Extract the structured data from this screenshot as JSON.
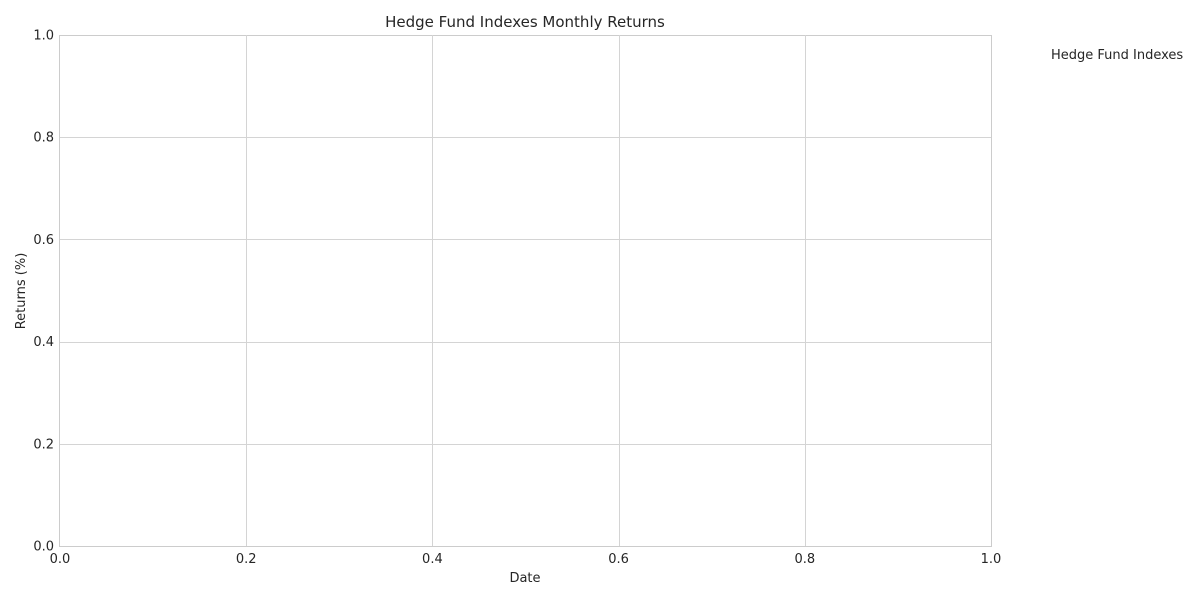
{
  "chart_data": {
    "type": "line",
    "title": "Hedge Fund Indexes Monthly Returns",
    "xlabel": "Date",
    "ylabel": "Returns (%)",
    "xlim": [
      0.0,
      1.0
    ],
    "ylim": [
      0.0,
      1.0
    ],
    "x_ticks": [
      "0.0",
      "0.2",
      "0.4",
      "0.6",
      "0.8",
      "1.0"
    ],
    "y_ticks": [
      "0.0",
      "0.2",
      "0.4",
      "0.6",
      "0.8",
      "1.0"
    ],
    "grid": true,
    "legend": {
      "placement": "outside-right",
      "title": "Hedge Fund Indexes",
      "entries": []
    },
    "series": []
  }
}
